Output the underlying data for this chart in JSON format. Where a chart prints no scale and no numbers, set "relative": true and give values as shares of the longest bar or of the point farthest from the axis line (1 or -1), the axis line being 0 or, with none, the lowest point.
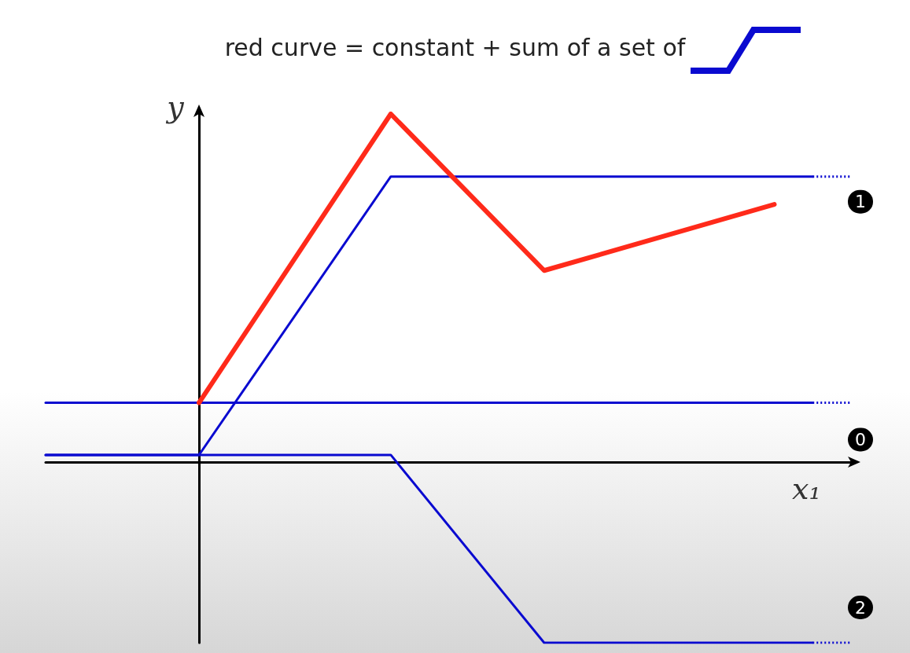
{
  "chart_data": {
    "type": "line",
    "title": "red curve = constant + sum of a set of",
    "xlabel": "x₁",
    "ylabel": "y",
    "relative": true,
    "grid": false,
    "legend": false,
    "marker": "none",
    "categories": [
      null,
      null,
      null,
      null,
      null,
      null,
      null,
      null,
      null,
      null,
      null,
      null,
      null,
      null,
      null,
      null,
      null,
      null,
      null,
      null,
      null,
      null
    ],
    "series": [
      {
        "color": "#ff2a1a",
        "values": [
          null,
          null,
          null,
          null,
          0.17,
          null,
          null,
          null,
          null,
          1,
          null,
          null,
          null,
          0.55,
          null,
          null,
          null,
          null,
          null,
          0.74,
          null,
          null
        ]
      },
      {
        "color": "#0a0ad0",
        "values": [
          0.02,
          null,
          null,
          null,
          0.02,
          null,
          null,
          null,
          null,
          0.82,
          null,
          null,
          null,
          null,
          null,
          null,
          null,
          null,
          null,
          null,
          0.82,
          null
        ]
      },
      {
        "name": "1",
        "color": "#0a0ad0",
        "line_style": "dotted",
        "values": [
          null,
          null,
          null,
          null,
          null,
          null,
          null,
          null,
          null,
          null,
          null,
          null,
          null,
          null,
          null,
          null,
          null,
          null,
          null,
          null,
          0.82,
          0.82
        ]
      },
      {
        "color": "#0a0ad0",
        "values": [
          0.17,
          null,
          null,
          null,
          null,
          null,
          null,
          null,
          null,
          null,
          null,
          null,
          null,
          null,
          null,
          null,
          null,
          null,
          null,
          null,
          0.17,
          null
        ]
      },
      {
        "name": "0",
        "color": "#0a0ad0",
        "line_style": "dotted",
        "values": [
          null,
          null,
          null,
          null,
          null,
          null,
          null,
          null,
          null,
          null,
          null,
          null,
          null,
          null,
          null,
          null,
          null,
          null,
          null,
          null,
          0.17,
          0.17
        ]
      },
      {
        "color": "#0a0ad0",
        "values": [
          0.02,
          null,
          null,
          null,
          null,
          null,
          null,
          null,
          null,
          0.02,
          null,
          null,
          null,
          -0.52,
          null,
          null,
          null,
          null,
          null,
          null,
          -0.52,
          null
        ]
      },
      {
        "name": "2",
        "color": "#0a0ad0",
        "line_style": "dotted",
        "values": [
          null,
          null,
          null,
          null,
          null,
          null,
          null,
          null,
          null,
          null,
          null,
          null,
          null,
          null,
          null,
          null,
          null,
          null,
          null,
          null,
          -0.52,
          -0.52
        ]
      }
    ]
  }
}
